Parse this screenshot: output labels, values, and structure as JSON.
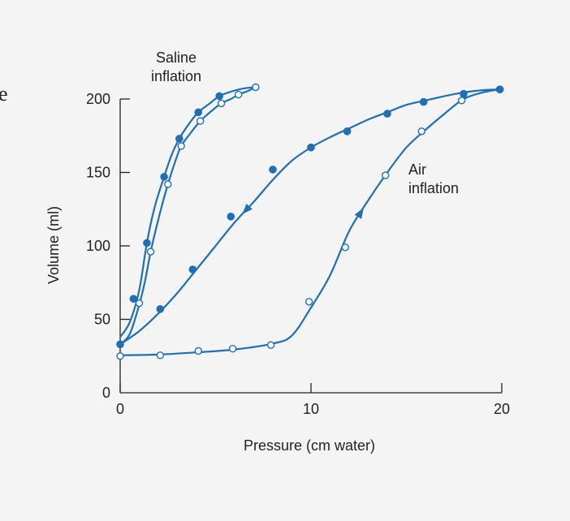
{
  "stray_text": "e",
  "chart_data": {
    "type": "line",
    "title": "",
    "xlabel": "Pressure (cm water)",
    "ylabel": "Volume (ml)",
    "xlim": [
      0,
      20
    ],
    "ylim": [
      0,
      200
    ],
    "xticks": [
      0,
      10,
      20
    ],
    "yticks": [
      0,
      50,
      100,
      150,
      200
    ],
    "grid": false,
    "color": "#1f6fb5",
    "annotations": [
      {
        "lines": [
          "Saline",
          "inflation"
        ]
      },
      {
        "lines": [
          "Air",
          "inflation"
        ]
      }
    ],
    "series": [
      {
        "marker": "open",
        "points": [
          [
            0,
            25
          ],
          [
            2.1,
            25.5
          ],
          [
            4.1,
            28.5
          ],
          [
            5.9,
            30
          ],
          [
            7.9,
            32.5
          ],
          [
            9.9,
            62
          ],
          [
            11.8,
            99
          ],
          [
            13.9,
            148
          ],
          [
            15.8,
            178
          ],
          [
            17.9,
            199
          ],
          [
            19.9,
            206.5
          ]
        ],
        "curve": [
          [
            0,
            25.5
          ],
          [
            2,
            26
          ],
          [
            4,
            27.5
          ],
          [
            6,
            29.5
          ],
          [
            8,
            33.5
          ],
          [
            9,
            39
          ],
          [
            10,
            58
          ],
          [
            11,
            80
          ],
          [
            12,
            110
          ],
          [
            13,
            131
          ],
          [
            14,
            150
          ],
          [
            15,
            167
          ],
          [
            16,
            179
          ],
          [
            17,
            190
          ],
          [
            18,
            200
          ],
          [
            19,
            204.5
          ],
          [
            19.9,
            206.5
          ]
        ],
        "arrow_at": 12.6,
        "arrow_direction": "up"
      },
      {
        "marker": "filled",
        "points": [
          [
            0,
            33
          ],
          [
            2.1,
            57
          ],
          [
            3.8,
            84
          ],
          [
            5.8,
            120
          ],
          [
            8,
            152
          ],
          [
            10,
            167
          ],
          [
            11.9,
            178
          ],
          [
            14,
            190
          ],
          [
            15.9,
            198
          ],
          [
            18,
            203.5
          ],
          [
            19.9,
            206.5
          ]
        ],
        "curve": [
          [
            0,
            33
          ],
          [
            1,
            42
          ],
          [
            2,
            54
          ],
          [
            3,
            68
          ],
          [
            4,
            84
          ],
          [
            5,
            100
          ],
          [
            6,
            116
          ],
          [
            7,
            130
          ],
          [
            8,
            145
          ],
          [
            9,
            158
          ],
          [
            10,
            167
          ],
          [
            11,
            174
          ],
          [
            12,
            180
          ],
          [
            13,
            186
          ],
          [
            14,
            191
          ],
          [
            15,
            196
          ],
          [
            16,
            199
          ],
          [
            17,
            202
          ],
          [
            18,
            204.5
          ],
          [
            19,
            206
          ],
          [
            19.9,
            206.5
          ]
        ],
        "arrow_at": 6.6,
        "arrow_direction": "down"
      },
      {
        "marker": "filled",
        "points": [
          [
            0.7,
            64
          ],
          [
            1.4,
            102
          ],
          [
            2.3,
            147
          ],
          [
            3.1,
            173
          ],
          [
            4.1,
            191
          ],
          [
            5.2,
            202
          ]
        ],
        "curve": [
          [
            0,
            38
          ],
          [
            0.5,
            48
          ],
          [
            1,
            70
          ],
          [
            1.4,
            102
          ],
          [
            1.8,
            126
          ],
          [
            2.3,
            147
          ],
          [
            2.7,
            162
          ],
          [
            3.1,
            173
          ],
          [
            3.6,
            183
          ],
          [
            4.1,
            191
          ],
          [
            4.7,
            197
          ],
          [
            5.2,
            202
          ],
          [
            5.8,
            205
          ],
          [
            6.4,
            207
          ],
          [
            7,
            208
          ]
        ],
        "arrow_at": null,
        "arrow_direction": null
      },
      {
        "marker": "open",
        "points": [
          [
            1.0,
            61
          ],
          [
            1.6,
            96
          ],
          [
            2.5,
            142
          ],
          [
            3.2,
            168
          ],
          [
            4.2,
            185
          ],
          [
            5.3,
            197
          ],
          [
            6.2,
            203
          ],
          [
            7.1,
            208
          ]
        ],
        "curve": [
          [
            0,
            33
          ],
          [
            0.5,
            40
          ],
          [
            1,
            60
          ],
          [
            1.3,
            76
          ],
          [
            1.6,
            96
          ],
          [
            2,
            118
          ],
          [
            2.5,
            142
          ],
          [
            2.9,
            158
          ],
          [
            3.2,
            168
          ],
          [
            3.7,
            177
          ],
          [
            4.2,
            185
          ],
          [
            4.8,
            192
          ],
          [
            5.3,
            197
          ],
          [
            5.8,
            200
          ],
          [
            6.2,
            203
          ],
          [
            6.7,
            205.5
          ],
          [
            7.1,
            208
          ]
        ],
        "arrow_at": null,
        "arrow_direction": null
      }
    ]
  }
}
